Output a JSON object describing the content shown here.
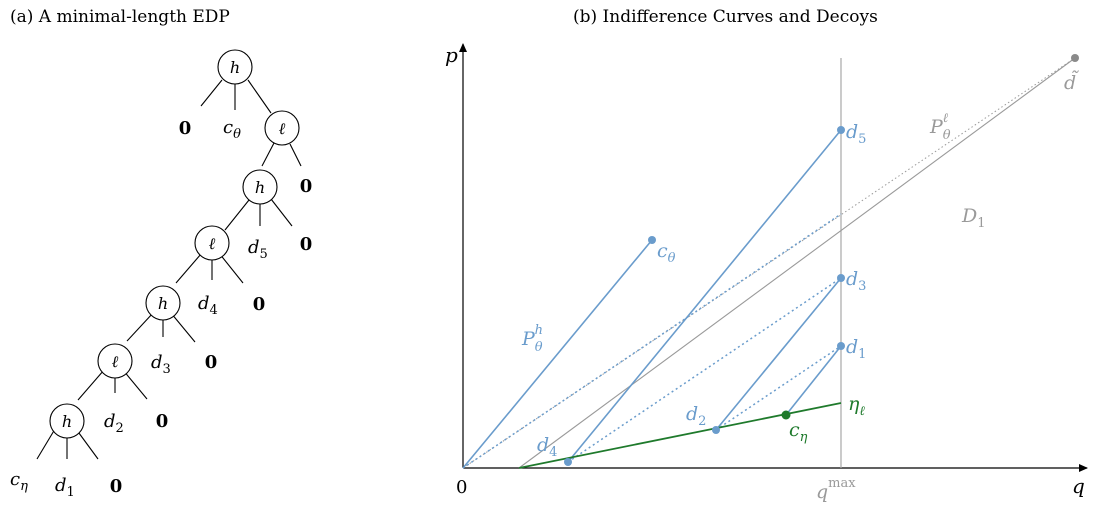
{
  "panel_a": {
    "title": "(a) A minimal-length EDP",
    "node_h": "h",
    "node_l": "ℓ",
    "zero": "0",
    "c_theta": "c",
    "c_theta_sub": "θ",
    "c_eta": "c",
    "c_eta_sub": "η",
    "d1": "d",
    "d1_sub": "1",
    "d2": "d",
    "d2_sub": "2",
    "d3": "d",
    "d3_sub": "3",
    "d4": "d",
    "d4_sub": "4",
    "d5": "d",
    "d5_sub": "5"
  },
  "panel_b": {
    "title": "(b) Indifference Curves and Decoys",
    "axis_p": "p",
    "axis_q": "q",
    "origin": "0",
    "qmax": "q",
    "qmax_sup": "max",
    "lbl_d5": "d",
    "lbl_d5_sub": "5",
    "lbl_d3": "d",
    "lbl_d3_sub": "3",
    "lbl_d1": "d",
    "lbl_d1_sub": "1",
    "lbl_d2": "d",
    "lbl_d2_sub": "2",
    "lbl_d4": "d",
    "lbl_d4_sub": "4",
    "lbl_ctheta": "c",
    "lbl_ctheta_sub": "θ",
    "lbl_ceta": "c",
    "lbl_ceta_sub": "η",
    "lbl_eta": "η",
    "lbl_eta_sub": "ℓ",
    "lbl_dtilde": "d̃",
    "lbl_Ph": "P",
    "lbl_Ph_sub": "θ",
    "lbl_Ph_sup": "h",
    "lbl_Pl": "P",
    "lbl_Pl_sub": "θ",
    "lbl_Pl_sup": "ℓ",
    "lbl_D1": "D",
    "lbl_D1_sub": "1"
  },
  "colors": {
    "blue": "#6a9ccc",
    "green": "#1f7a2c",
    "gray": "#9a9a9a",
    "black": "#000000"
  }
}
